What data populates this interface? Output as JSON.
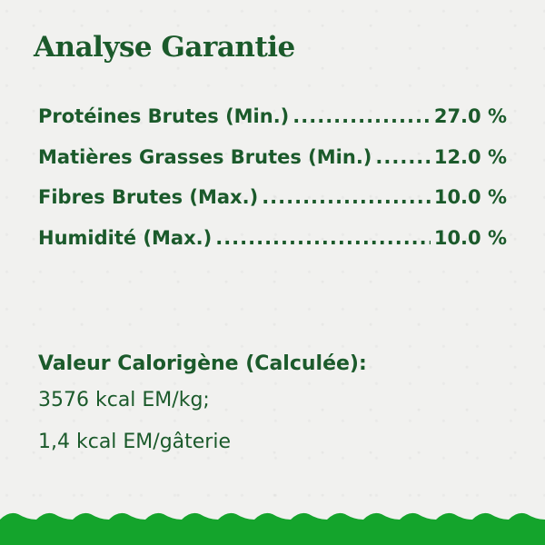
{
  "title": "Analyse Garantie",
  "rows": [
    {
      "label": "Protéines Brutes (Min.)",
      "value": "27.0 %"
    },
    {
      "label": "Matières Grasses Brutes (Min.)",
      "value": "12.0 %"
    },
    {
      "label": "Fibres Brutes (Max.)",
      "value": "10.0 %"
    },
    {
      "label": "Humidité (Max.)",
      "value": "10.0 %"
    }
  ],
  "calorie": {
    "heading": "Valeur Calorigène (Calculée):",
    "line1": "3576 kcal EM/kg;",
    "line2": "1,4 kcal EM/gâterie"
  },
  "colors": {
    "text": "#1b5a2b",
    "wave": "#14a42c"
  }
}
